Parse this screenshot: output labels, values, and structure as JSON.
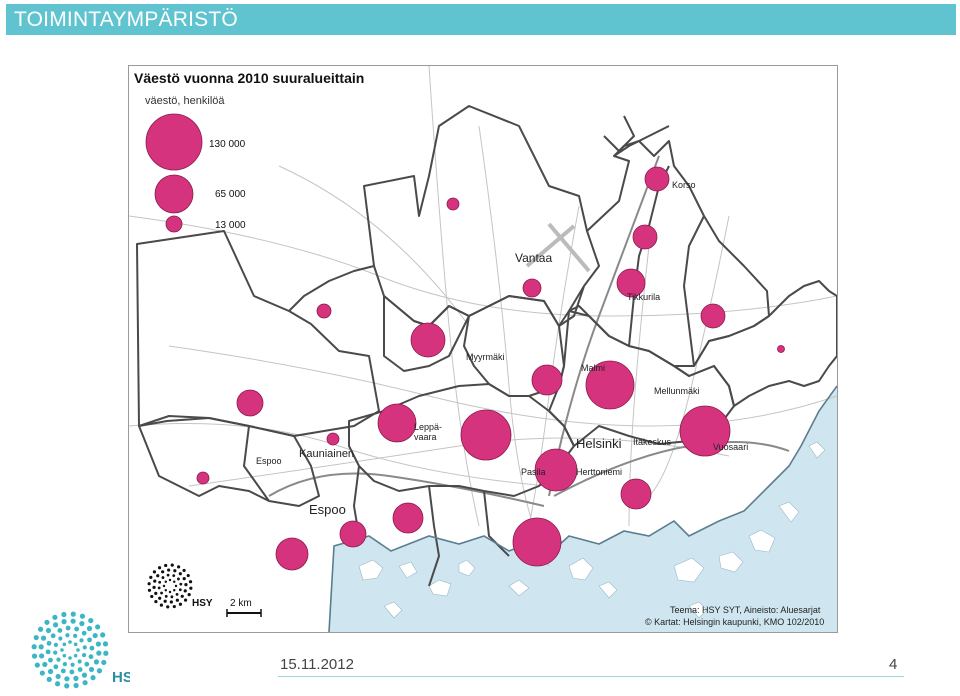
{
  "header": {
    "title": "TOIMINTAYMPÄRISTÖ"
  },
  "map": {
    "title": "Väestö vuonna 2010 suuralueittain",
    "subtitle": "väestö, henkilöä",
    "legend": [
      {
        "label": "130 000",
        "value": 130000
      },
      {
        "label": "65 000",
        "value": 65000
      },
      {
        "label": "13 000",
        "value": 13000
      }
    ],
    "place_labels": {
      "korso": "Korso",
      "vantaa": "Vantaa",
      "tikkurila": "Tikkurila",
      "myyrmaki": "Myyrmäki",
      "malmi": "Malmi",
      "mellunmaki": "Mellunmäki",
      "leppavaara_1": "Leppä-",
      "leppavaara_2": "vaara",
      "helsinki": "Helsinki",
      "itakeskus": "Itäkeskus",
      "vuosaari": "Vuosaari",
      "espoo_small": "Espoo",
      "kauniainen": "Kauniainen",
      "pasila": "Pasila",
      "herttoniemi": "Herttoniemi",
      "espoo": "Espoo"
    },
    "scale": "2 km",
    "hsy_small": "HSY",
    "credits": {
      "line1": "Teema: HSY SYT, Aineisto: Aluesarjat",
      "line2": "© Kartat: Helsingin kaupunki, KMO 102/2010"
    },
    "colors": {
      "bubble": "#d6337f",
      "water": "#cfe6f1",
      "border": "#4a4a4a"
    }
  },
  "footer": {
    "date": "15.11.2012",
    "page": "4",
    "logo_text": "HSY"
  }
}
